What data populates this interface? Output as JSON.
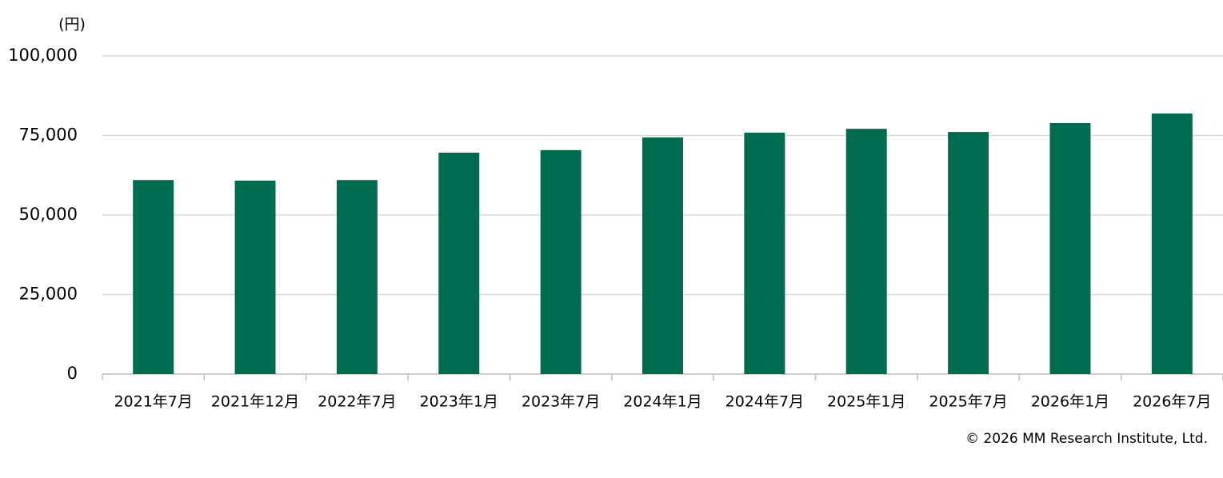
{
  "chart_data": {
    "type": "bar",
    "y_label": "(円)",
    "source": "© 2026 MM Research Institute, Ltd.",
    "categories": [
      "2021年7月",
      "2021年12月",
      "2022年7月",
      "2023年1月",
      "2023年7月",
      "2024年1月",
      "2024年7月",
      "2025年1月",
      "2025年7月",
      "2026年1月",
      "2026年7月"
    ],
    "values": [
      61000,
      60800,
      61000,
      69600,
      70400,
      74400,
      75900,
      77100,
      76100,
      78900,
      81900
    ],
    "color": "#006c4f",
    "ylim": [
      0,
      100000
    ],
    "yticks": [
      0,
      {
        "value": 25000,
        "label": "25,000"
      },
      {
        "value": 50000,
        "label": "50,000"
      },
      {
        "value": 75000,
        "label": "75,000"
      },
      {
        "value": 100000,
        "label": "100,000"
      }
    ],
    "grid": true
  }
}
